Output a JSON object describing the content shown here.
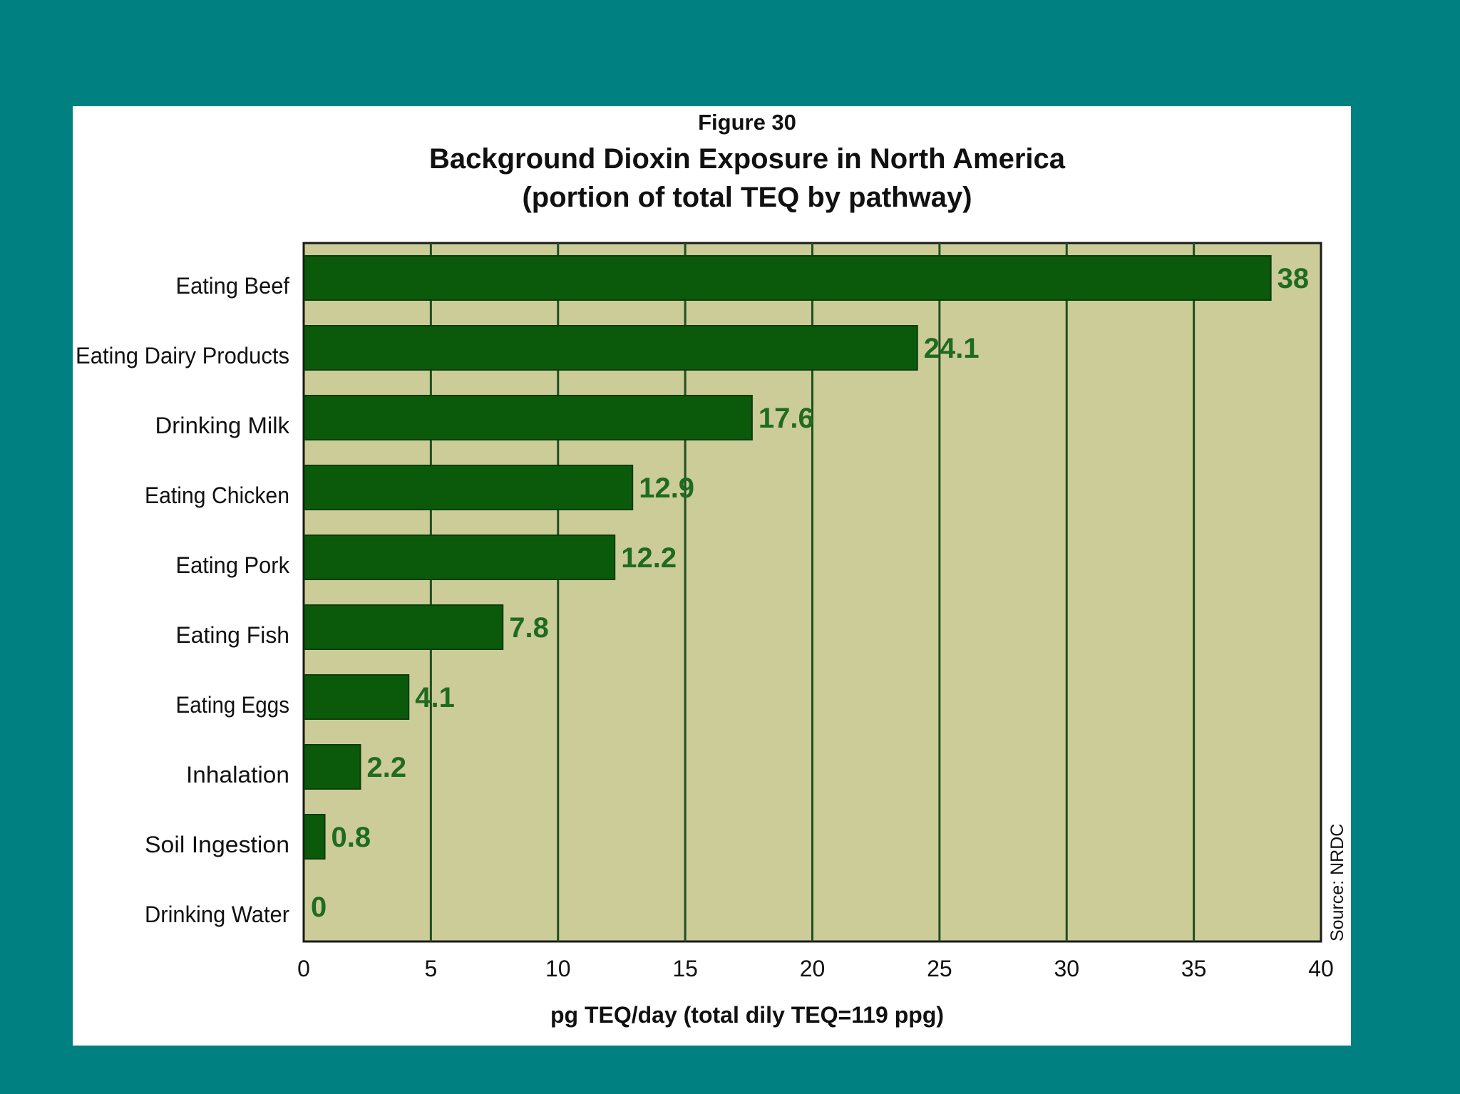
{
  "colors": {
    "background": "#008080",
    "panel": "#ffffff",
    "plot_area": "#cccc99",
    "bar": "#0b5a0b",
    "bar_label": "#1f6b1f",
    "gridline": "#1f4f1f"
  },
  "chart_data": {
    "type": "bar",
    "orientation": "horizontal",
    "figure_label": "Figure 30",
    "title": "Background Dioxin Exposure in North America",
    "subtitle": "(portion of total TEQ by pathway)",
    "categories": [
      "Eating Beef",
      "Eating Dairy Products",
      "Drinking Milk",
      "Eating Chicken",
      "Eating Pork",
      "Eating Fish",
      "Eating Eggs",
      "Inhalation",
      "Soil Ingestion",
      "Drinking Water"
    ],
    "values": [
      38,
      24.1,
      17.6,
      12.9,
      12.2,
      7.8,
      4.1,
      2.2,
      0.8,
      0
    ],
    "data_labels": [
      "38",
      "24.1",
      "17.6",
      "12.9",
      "12.2",
      "7.8",
      "4.1",
      "2.2",
      "0.8",
      "0"
    ],
    "xlabel": "pg TEQ/day (total dily TEQ=119 ppg)",
    "ylabel": "",
    "xlim": [
      0,
      40
    ],
    "xticks": [
      0,
      5,
      10,
      15,
      20,
      25,
      30,
      35,
      40
    ],
    "grid": "vertical",
    "source_note": "Source: NRDC"
  }
}
